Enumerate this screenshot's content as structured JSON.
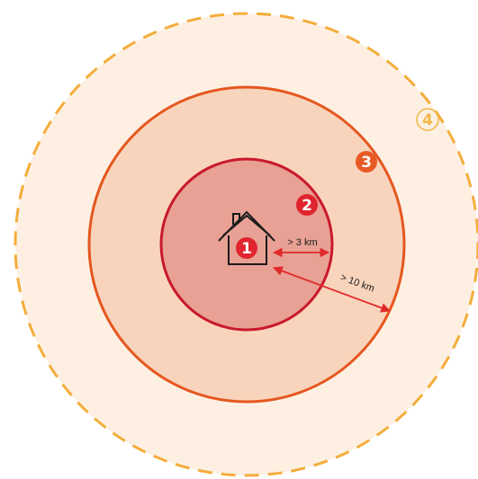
{
  "zones": [
    {
      "number": "1",
      "color": "#e0252e",
      "text_color": "#ffffff"
    },
    {
      "number": "2",
      "color": "#e0252e",
      "text_color": "#ffffff"
    },
    {
      "number": "3",
      "color": "#e85a24",
      "text_color": "#ffffff"
    },
    {
      "number": "4",
      "color": "#f2b84a",
      "text_color": "#f2b84a"
    }
  ],
  "distances": {
    "inner": "> 3 km",
    "outer": "> 10 km"
  },
  "colors": {
    "ring4_fill": "#fdf0e3",
    "ring4_stroke": "#f4ad3b",
    "ring3_fill": "#f9d4bd",
    "ring3_stroke": "#e5571f",
    "ring2_fill": "#e8a194",
    "ring2_stroke": "#c8192d",
    "arrow": "#e02a2a",
    "house": "#1a1a1a"
  },
  "icons": {
    "home": "house-icon"
  }
}
